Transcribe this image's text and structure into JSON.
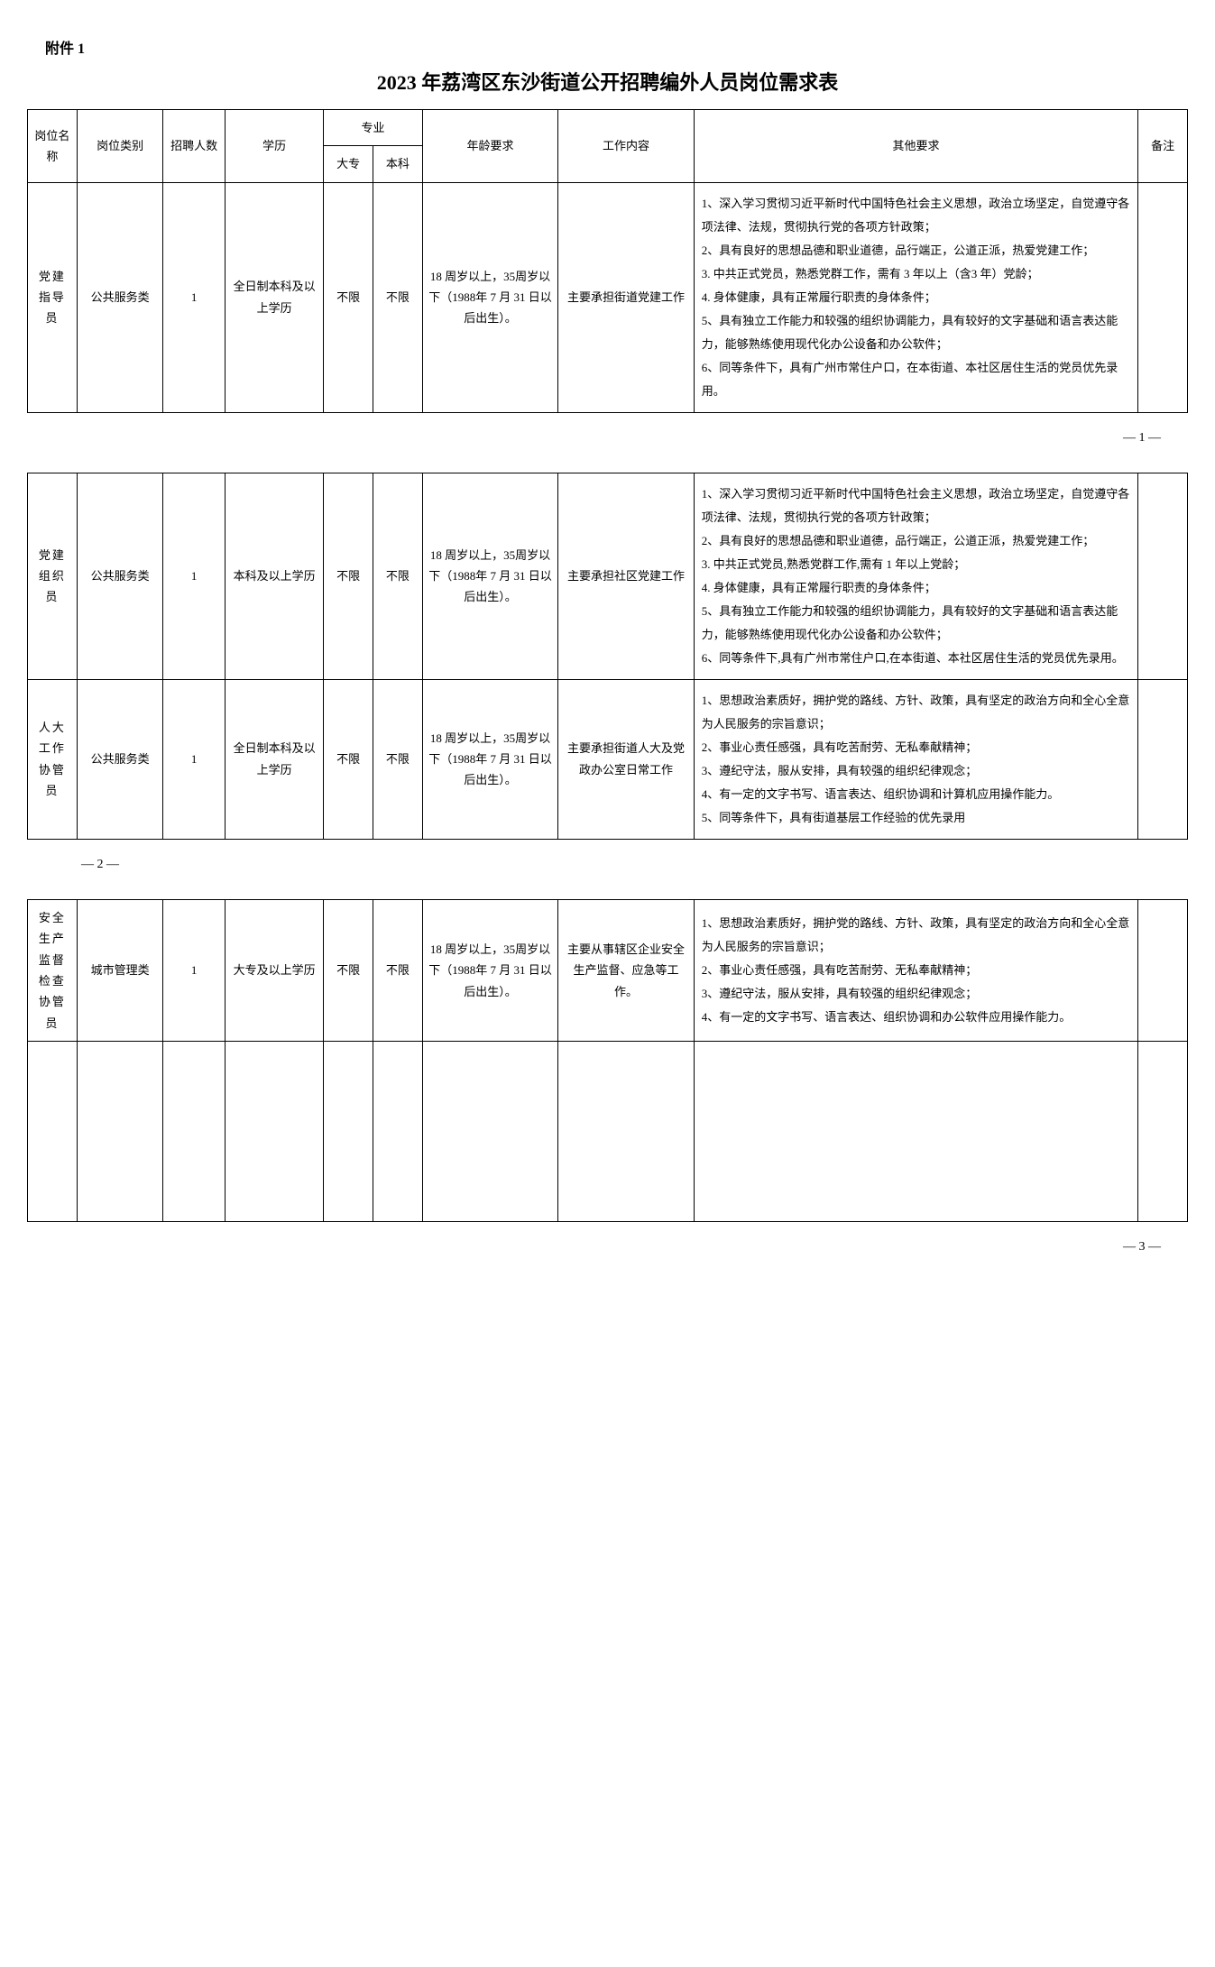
{
  "attachment_label": "附件 1",
  "title": "2023 年荔湾区东沙街道公开招聘编外人员岗位需求表",
  "headers": {
    "position_name": "岗位名称",
    "position_type": "岗位类别",
    "headcount": "招聘人数",
    "education": "学历",
    "major": "专业",
    "major_college": "大专",
    "major_bachelor": "本科",
    "age_req": "年龄要求",
    "work_content": "工作内容",
    "other_req": "其他要求",
    "note": "备注"
  },
  "rows": [
    {
      "position_name": "党建指导员",
      "position_type": "公共服务类",
      "headcount": "1",
      "education": "全日制本科及以上学历",
      "major_college": "不限",
      "major_bachelor": "不限",
      "age_req": "18 周岁以上，35周岁以下（1988年 7 月 31 日以后出生）。",
      "work_content": "主要承担街道党建工作",
      "other_req": "1、深入学习贯彻习近平新时代中国特色社会主义思想，政治立场坚定，自觉遵守各项法律、法规，贯彻执行党的各项方针政策；\n2、具有良好的思想品德和职业道德，品行端正，公道正派，热爱党建工作；\n3. 中共正式党员，熟悉党群工作，需有 3 年以上（含3 年）党龄；\n4. 身体健康，具有正常履行职责的身体条件；\n5、具有独立工作能力和较强的组织协调能力，具有较好的文字基础和语言表达能力，能够熟练使用现代化办公设备和办公软件；\n6、同等条件下，具有广州市常住户口，在本街道、本社区居住生活的党员优先录用。",
      "note": ""
    },
    {
      "position_name": "党建组织员",
      "position_type": "公共服务类",
      "headcount": "1",
      "education": "本科及以上学历",
      "major_college": "不限",
      "major_bachelor": "不限",
      "age_req": "18 周岁以上，35周岁以下（1988年 7 月 31 日以后出生）。",
      "work_content": "主要承担社区党建工作",
      "other_req": "1、深入学习贯彻习近平新时代中国特色社会主义思想，政治立场坚定，自觉遵守各项法律、法规，贯彻执行党的各项方针政策；\n2、具有良好的思想品德和职业道德，品行端正，公道正派，热爱党建工作；\n3. 中共正式党员,熟悉党群工作,需有 1 年以上党龄；\n4. 身体健康，具有正常履行职责的身体条件；\n5、具有独立工作能力和较强的组织协调能力，具有较好的文字基础和语言表达能力，能够熟练使用现代化办公设备和办公软件；\n6、同等条件下,具有广州市常住户口,在本街道、本社区居住生活的党员优先录用。",
      "note": ""
    },
    {
      "position_name": "人大工作协管员",
      "position_type": "公共服务类",
      "headcount": "1",
      "education": "全日制本科及以上学历",
      "major_college": "不限",
      "major_bachelor": "不限",
      "age_req": "18 周岁以上，35周岁以下（1988年 7 月 31 日以后出生）。",
      "work_content": "主要承担街道人大及党政办公室日常工作",
      "other_req": "1、思想政治素质好，拥护党的路线、方针、政策，具有坚定的政治方向和全心全意为人民服务的宗旨意识；\n2、事业心责任感强，具有吃苦耐劳、无私奉献精神；\n3、遵纪守法，服从安排，具有较强的组织纪律观念；\n4、有一定的文字书写、语言表达、组织协调和计算机应用操作能力。\n5、同等条件下，具有街道基层工作经验的优先录用",
      "note": ""
    },
    {
      "position_name": "安全生产监督检查协管员",
      "position_type": "城市管理类",
      "headcount": "1",
      "education": "大专及以上学历",
      "major_college": "不限",
      "major_bachelor": "不限",
      "age_req": "18 周岁以上，35周岁以下（1988年 7 月 31 日以后出生）。",
      "work_content": "主要从事辖区企业安全生产监督、应急等工作。",
      "other_req": "1、思想政治素质好，拥护党的路线、方针、政策，具有坚定的政治方向和全心全意为人民服务的宗旨意识；\n2、事业心责任感强，具有吃苦耐劳、无私奉献精神；\n3、遵纪守法，服从安排，具有较强的组织纪律观念；\n4、有一定的文字书写、语言表达、组织协调和办公软件应用操作能力。",
      "note": ""
    }
  ],
  "page_numbers": {
    "p1": "— 1 —",
    "p2": "— 2 —",
    "p3": "— 3 —"
  }
}
